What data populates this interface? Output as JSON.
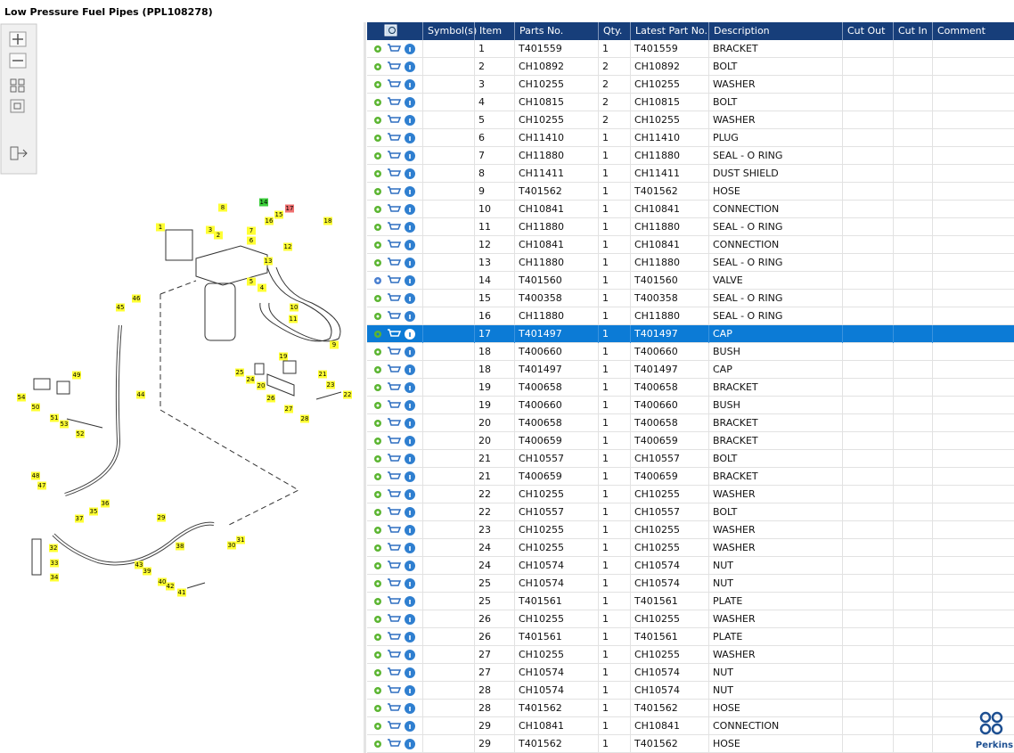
{
  "title": "Low Pressure Fuel Pipes (PPL108278)",
  "table": {
    "headers": [
      "Symbol(s)",
      "Item",
      "Parts No.",
      "Qty.",
      "Latest Part No.",
      "Description",
      "Cut Out",
      "Cut In",
      "Comment"
    ],
    "rows": [
      [
        "1",
        "T401559",
        "1",
        "T401559",
        "BRACKET"
      ],
      [
        "2",
        "CH10892",
        "2",
        "CH10892",
        "BOLT"
      ],
      [
        "3",
        "CH10255",
        "2",
        "CH10255",
        "WASHER"
      ],
      [
        "4",
        "CH10815",
        "2",
        "CH10815",
        "BOLT"
      ],
      [
        "5",
        "CH10255",
        "2",
        "CH10255",
        "WASHER"
      ],
      [
        "6",
        "CH11410",
        "1",
        "CH11410",
        "PLUG"
      ],
      [
        "7",
        "CH11880",
        "1",
        "CH11880",
        "SEAL - O RING"
      ],
      [
        "8",
        "CH11411",
        "1",
        "CH11411",
        "DUST SHIELD"
      ],
      [
        "9",
        "T401562",
        "1",
        "T401562",
        "HOSE"
      ],
      [
        "10",
        "CH10841",
        "1",
        "CH10841",
        "CONNECTION"
      ],
      [
        "11",
        "CH11880",
        "1",
        "CH11880",
        "SEAL - O RING"
      ],
      [
        "12",
        "CH10841",
        "1",
        "CH10841",
        "CONNECTION"
      ],
      [
        "13",
        "CH11880",
        "1",
        "CH11880",
        "SEAL - O RING"
      ],
      [
        "14",
        "T401560",
        "1",
        "T401560",
        "VALVE"
      ],
      [
        "15",
        "T400358",
        "1",
        "T400358",
        "SEAL - O RING"
      ],
      [
        "16",
        "CH11880",
        "1",
        "CH11880",
        "SEAL - O RING"
      ],
      [
        "17",
        "T401497",
        "1",
        "T401497",
        "CAP"
      ],
      [
        "18",
        "T400660",
        "1",
        "T400660",
        "BUSH"
      ],
      [
        "18",
        "T401497",
        "1",
        "T401497",
        "CAP"
      ],
      [
        "19",
        "T400658",
        "1",
        "T400658",
        "BRACKET"
      ],
      [
        "19",
        "T400660",
        "1",
        "T400660",
        "BUSH"
      ],
      [
        "20",
        "T400658",
        "1",
        "T400658",
        "BRACKET"
      ],
      [
        "20",
        "T400659",
        "1",
        "T400659",
        "BRACKET"
      ],
      [
        "21",
        "CH10557",
        "1",
        "CH10557",
        "BOLT"
      ],
      [
        "21",
        "T400659",
        "1",
        "T400659",
        "BRACKET"
      ],
      [
        "22",
        "CH10255",
        "1",
        "CH10255",
        "WASHER"
      ],
      [
        "22",
        "CH10557",
        "1",
        "CH10557",
        "BOLT"
      ],
      [
        "23",
        "CH10255",
        "1",
        "CH10255",
        "WASHER"
      ],
      [
        "24",
        "CH10255",
        "1",
        "CH10255",
        "WASHER"
      ],
      [
        "24",
        "CH10574",
        "1",
        "CH10574",
        "NUT"
      ],
      [
        "25",
        "CH10574",
        "1",
        "CH10574",
        "NUT"
      ],
      [
        "25",
        "T401561",
        "1",
        "T401561",
        "PLATE"
      ],
      [
        "26",
        "CH10255",
        "1",
        "CH10255",
        "WASHER"
      ],
      [
        "26",
        "T401561",
        "1",
        "T401561",
        "PLATE"
      ],
      [
        "27",
        "CH10255",
        "1",
        "CH10255",
        "WASHER"
      ],
      [
        "27",
        "CH10574",
        "1",
        "CH10574",
        "NUT"
      ],
      [
        "28",
        "CH10574",
        "1",
        "CH10574",
        "NUT"
      ],
      [
        "28",
        "T401562",
        "1",
        "T401562",
        "HOSE"
      ],
      [
        "29",
        "CH10841",
        "1",
        "CH10841",
        "CONNECTION"
      ],
      [
        "29",
        "T401562",
        "1",
        "T401562",
        "HOSE"
      ]
    ]
  },
  "diagram": {
    "callouts": [
      "1",
      "2",
      "3",
      "4",
      "5",
      "6",
      "7",
      "8",
      "9",
      "10",
      "11",
      "12",
      "13",
      "14",
      "15",
      "16",
      "17",
      "18",
      "19",
      "20",
      "21",
      "22",
      "23",
      "24",
      "25",
      "26",
      "27",
      "28",
      "29",
      "30",
      "31",
      "32",
      "33",
      "34",
      "35",
      "36",
      "37",
      "38",
      "39",
      "40",
      "41",
      "42",
      "43",
      "44",
      "45",
      "46",
      "47",
      "48",
      "49",
      "50",
      "51",
      "52",
      "53",
      "54"
    ]
  },
  "brand": "Perkins"
}
